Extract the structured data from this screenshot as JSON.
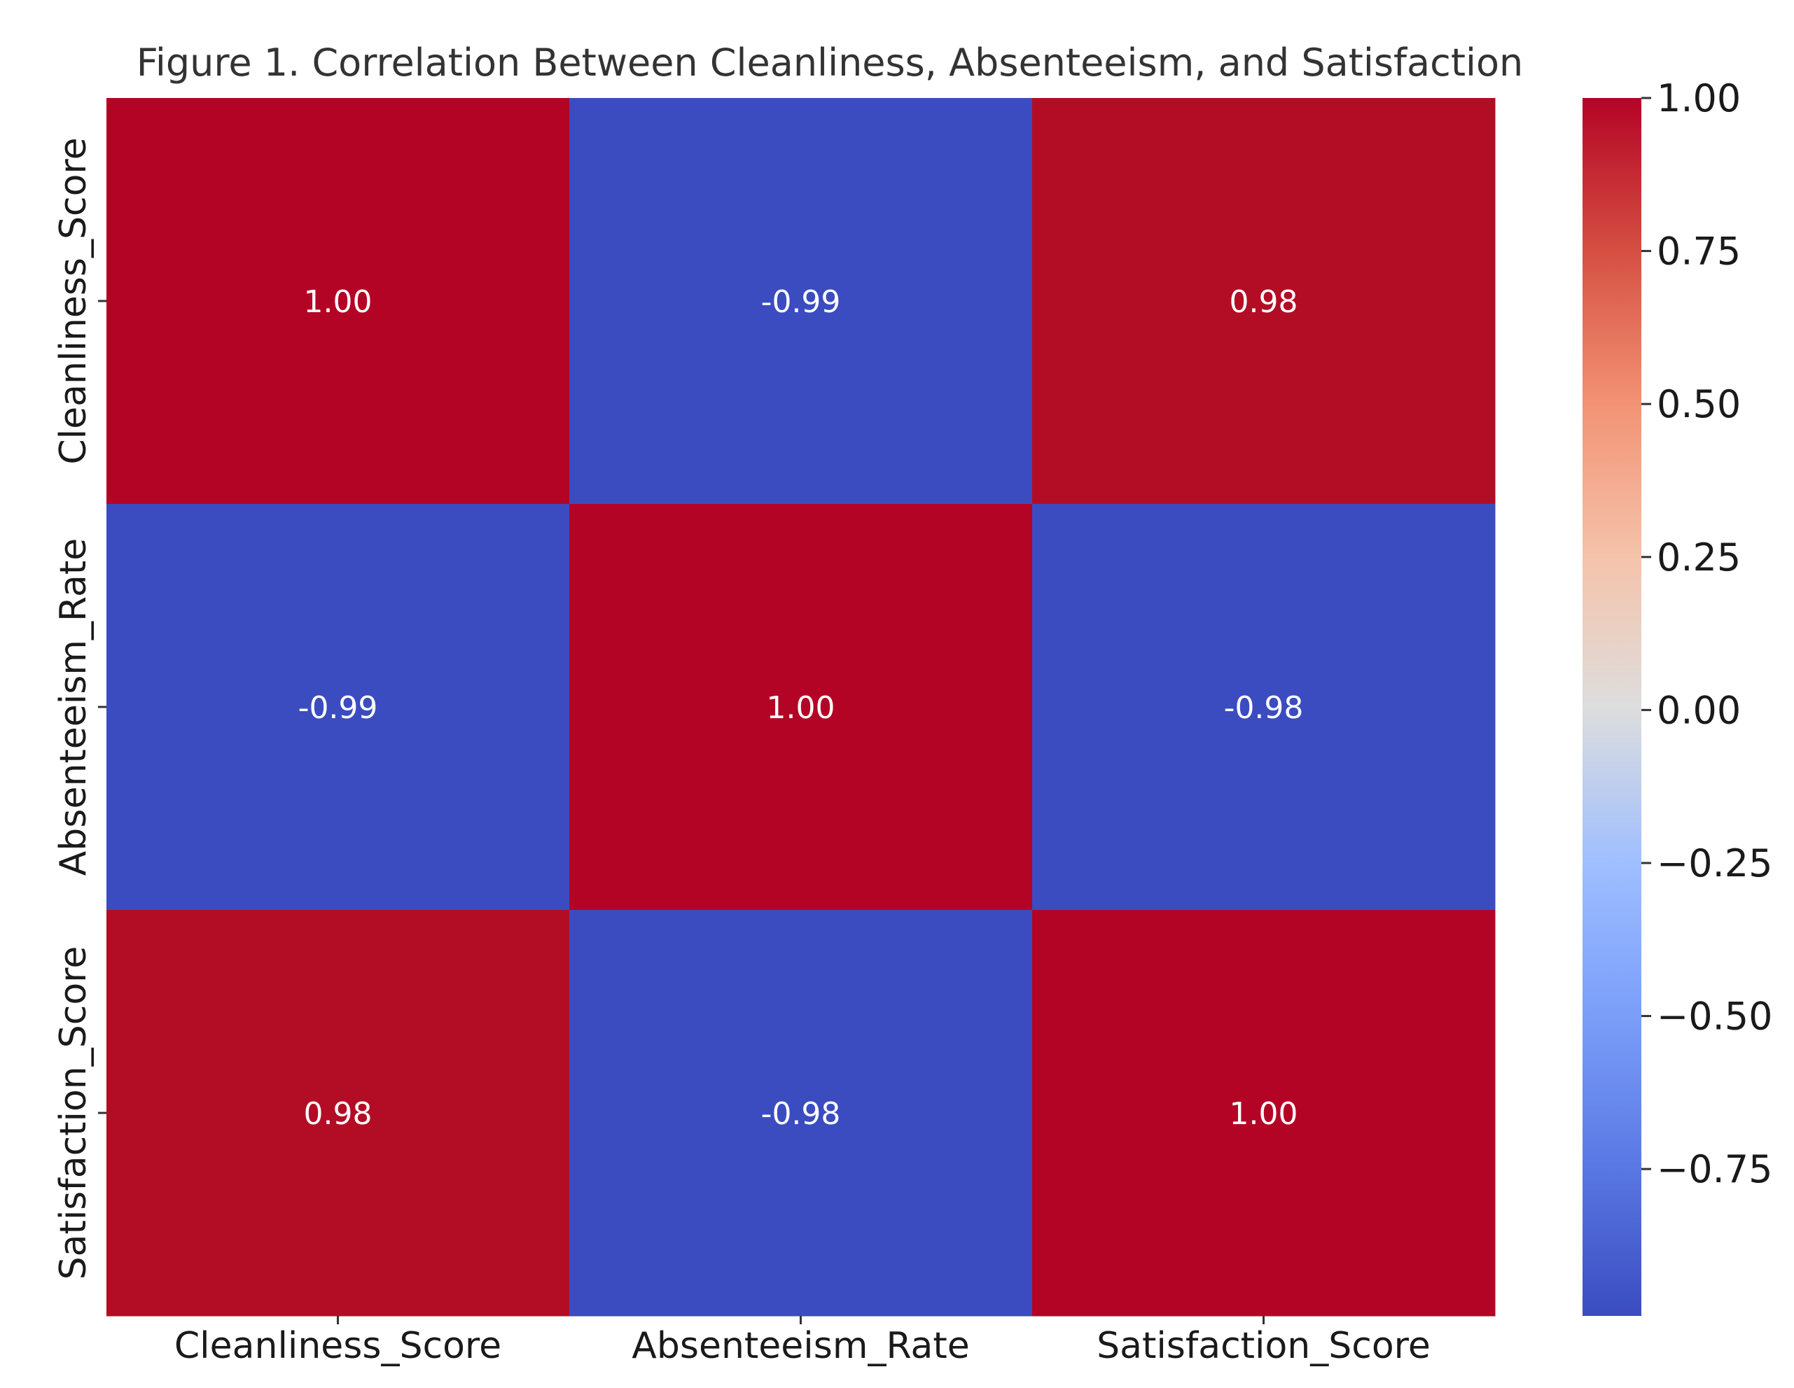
{
  "chart_data": {
    "type": "heatmap",
    "title": "Figure 1. Correlation Between Cleanliness, Absenteeism, and Satisfaction",
    "x_labels": [
      "Cleanliness_Score",
      "Absenteeism_Rate",
      "Satisfaction_Score"
    ],
    "y_labels": [
      "Cleanliness_Score",
      "Absenteeism_Rate",
      "Satisfaction_Score"
    ],
    "values": [
      [
        1.0,
        -0.99,
        0.98
      ],
      [
        -0.99,
        1.0,
        -0.98
      ],
      [
        0.98,
        -0.98,
        1.0
      ]
    ],
    "cell_labels": [
      [
        "1.00",
        "-0.99",
        "0.98"
      ],
      [
        "-0.99",
        "1.00",
        "-0.98"
      ],
      [
        "0.98",
        "-0.98",
        "1.00"
      ]
    ],
    "colormap": "coolwarm",
    "colorbar": {
      "vmin": -0.99,
      "vmax": 1.0,
      "ticks": [
        1.0,
        0.75,
        0.5,
        0.25,
        0.0,
        -0.25,
        -0.5,
        -0.75
      ],
      "tick_labels": [
        "1.00",
        "0.75",
        "0.50",
        "0.25",
        "0.00",
        "−0.25",
        "−0.50",
        "−0.75"
      ]
    },
    "colors": {
      "positive": "#b40426",
      "negative": "#3b4cc0",
      "neutral": "#dddddd"
    }
  }
}
